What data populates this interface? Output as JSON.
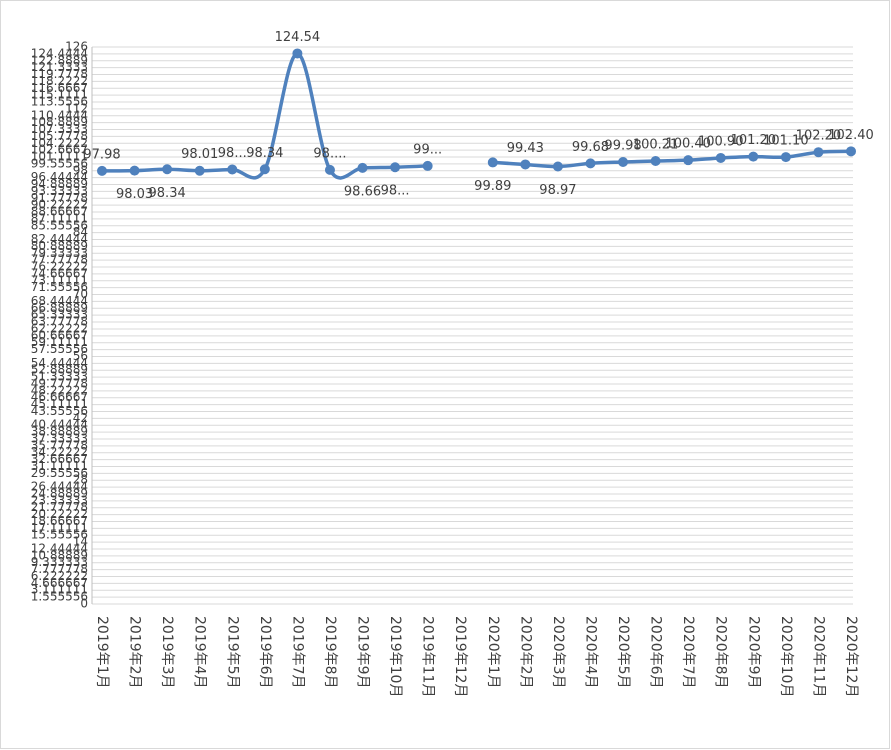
{
  "chart_data": {
    "type": "line",
    "categories": [
      "2019年1月",
      "2019年2月",
      "2019年3月",
      "2019年4月",
      "2019年5月",
      "2019年6月",
      "2019年7月",
      "2019年8月",
      "2019年9月",
      "2019年10月",
      "2019年11月",
      "2019年12月",
      "2020年1月",
      "2020年2月",
      "2020年3月",
      "2020年4月",
      "2020年5月",
      "2020年6月",
      "2020年7月",
      "2020年8月",
      "2020年9月",
      "2020年10月",
      "2020年11月",
      "2020年12月"
    ],
    "series": [
      {
        "color": "#4f81bd",
        "values": [
          97.98,
          98.03,
          98.34,
          98.01,
          98.3,
          98.34,
          124.54,
          98.2,
          98.66,
          98.8,
          99.1,
          null,
          99.89,
          99.43,
          98.97,
          99.68,
          99.98,
          100.21,
          100.4,
          100.9,
          101.2,
          101.1,
          102.2,
          102.4
        ],
        "value_labels": [
          "97.98",
          "98.03",
          "98.34",
          "98.01",
          "98...",
          "98.34",
          "124.54",
          "98....",
          "98.66",
          "98...",
          "99...",
          null,
          "99.89",
          "99.43",
          "98.97",
          "99.68",
          "99.98",
          "100.21",
          "100.40",
          "100.90",
          "101.20",
          "101.10",
          "102.20",
          "102.40"
        ]
      }
    ],
    "ylim": [
      0,
      126
    ],
    "yticks": [
      0,
      1.555556,
      3.111111,
      4.666667,
      6.222222,
      7.777778,
      9.333333,
      10.88889,
      12.44444,
      14,
      15.55556,
      17.11111,
      18.66667,
      20.22222,
      21.77778,
      23.33333,
      24.88889,
      26.44444,
      28,
      29.55556,
      31.11111,
      32.66667,
      34.22222,
      35.77778,
      37.33333,
      38.88889,
      40.44444,
      42,
      43.55556,
      45.11111,
      46.66667,
      48.22222,
      49.77778,
      51.33333,
      52.88889,
      54.44444,
      56,
      57.55556,
      59.11111,
      60.66667,
      62.22222,
      63.77778,
      65.33333,
      66.88889,
      68.44444,
      70,
      71.55556,
      73.11111,
      74.66667,
      76.22222,
      77.77778,
      79.33333,
      80.88889,
      82.44444,
      84,
      85.55556,
      87.11111,
      88.66667,
      90.22222,
      91.77778,
      93.33333,
      94.88889,
      96.44444,
      98,
      99.55556,
      101.1111,
      102.6667,
      104.2222,
      105.7778,
      107.3333,
      108.8889,
      110.4444,
      112,
      113.5556,
      115.1111,
      116.6667,
      118.2222,
      119.7778,
      121.3333,
      122.8889,
      124.4444,
      126
    ],
    "grid": true
  }
}
